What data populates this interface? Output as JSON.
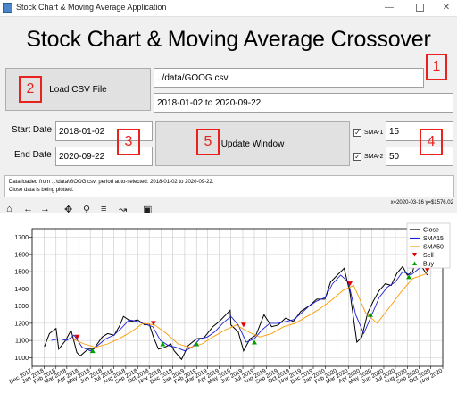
{
  "window": {
    "title": "Stock Chart & Moving Average Application"
  },
  "main_title": "Stock Chart & Moving Average Crossover",
  "controls": {
    "load_button": "Load CSV File",
    "file_path": "../data/GOOG.csv",
    "period": "2018-01-02 to 2020-09-22",
    "start_label": "Start Date",
    "start_value": "2018-01-02",
    "end_label": "End Date",
    "end_value": "2020-09-22",
    "update_button": "Update Window",
    "sma1_label": "SMA-1",
    "sma1_value": "15",
    "sma1_checked": "✓",
    "sma2_label": "SMA-2",
    "sma2_value": "50",
    "sma2_checked": "✓"
  },
  "badges": [
    "1",
    "2",
    "3",
    "4",
    "5"
  ],
  "status": {
    "line1": "Data loaded from ...\\data\\GOOG.csv; period auto-selected: 2018-01-02 to 2020-09-22.",
    "line2": "Close data is being plotted."
  },
  "toolbar": {
    "home_icon": "home-icon",
    "back_icon": "arrow-left-icon",
    "forward_icon": "arrow-right-icon",
    "pan_icon": "move-icon",
    "zoom_icon": "magnifier-icon",
    "configure_icon": "sliders-icon",
    "axes_icon": "line-chart-icon",
    "save_icon": "floppy-icon",
    "coords": "x=2020-03-16 y=$1576.02"
  },
  "colors": {
    "close": "#000000",
    "sma15": "#1f1fd6",
    "sma50": "#ff9900",
    "sell": "#e00000",
    "buy": "#00a000",
    "badge": "#e8231f"
  },
  "chart_data": {
    "type": "line",
    "title": "",
    "xlabel": "",
    "ylabel": "",
    "ylim": [
      950,
      1750
    ],
    "xlim": [
      "2017-12-01",
      "2020-11-01"
    ],
    "x_ticks": [
      "Dec 2017",
      "Jan 2018",
      "Feb 2018",
      "Mar 2018",
      "Apr 2018",
      "May 2018",
      "Jun 2018",
      "Jul 2018",
      "Aug 2018",
      "Sep 2018",
      "Oct 2018",
      "Nov 2018",
      "Dec 2018",
      "Jan 2019",
      "Feb 2019",
      "Mar 2019",
      "Apr 2019",
      "May 2019",
      "Jun 2019",
      "Jul 2019",
      "Aug 2019",
      "Sep 2019",
      "Oct 2019",
      "Nov 2019",
      "Dec 2019",
      "Jan 2020",
      "Feb 2020",
      "Mar 2020",
      "Apr 2020",
      "May 2020",
      "Jun 2020",
      "Jul 2020",
      "Aug 2020",
      "Sep 2020",
      "Oct 2020",
      "Nov 2020"
    ],
    "y_ticks": [
      1000,
      1100,
      1200,
      1300,
      1400,
      1500,
      1600,
      1700
    ],
    "grid": true,
    "legend": "top-right",
    "series": [
      {
        "name": "Close",
        "x": [
          "2018-01-02",
          "2018-01-15",
          "2018-02-01",
          "2018-02-08",
          "2018-02-26",
          "2018-03-12",
          "2018-03-27",
          "2018-04-05",
          "2018-04-25",
          "2018-05-10",
          "2018-06-01",
          "2018-06-15",
          "2018-07-02",
          "2018-07-16",
          "2018-07-26",
          "2018-08-15",
          "2018-09-01",
          "2018-09-20",
          "2018-10-01",
          "2018-10-12",
          "2018-10-25",
          "2018-11-10",
          "2018-11-26",
          "2018-12-05",
          "2018-12-24",
          "2019-01-10",
          "2019-02-01",
          "2019-02-20",
          "2019-03-15",
          "2019-04-01",
          "2019-04-29",
          "2019-05-01",
          "2019-05-20",
          "2019-06-03",
          "2019-06-20",
          "2019-07-05",
          "2019-07-26",
          "2019-08-15",
          "2019-09-01",
          "2019-09-20",
          "2019-10-10",
          "2019-10-30",
          "2019-11-20",
          "2019-12-10",
          "2019-12-31",
          "2020-01-15",
          "2020-02-01",
          "2020-02-19",
          "2020-03-05",
          "2020-03-23",
          "2020-04-05",
          "2020-04-20",
          "2020-05-05",
          "2020-05-20",
          "2020-06-05",
          "2020-06-20",
          "2020-07-05",
          "2020-07-20",
          "2020-08-01",
          "2020-08-15",
          "2020-09-01",
          "2020-09-10",
          "2020-09-22"
        ],
        "values": [
          1065,
          1140,
          1170,
          1050,
          1100,
          1160,
          1030,
          1010,
          1050,
          1050,
          1120,
          1140,
          1130,
          1185,
          1240,
          1210,
          1220,
          1190,
          1195,
          1120,
          1050,
          1060,
          1080,
          1040,
          990,
          1070,
          1110,
          1115,
          1180,
          1210,
          1275,
          1190,
          1150,
          1040,
          1110,
          1130,
          1250,
          1180,
          1190,
          1230,
          1210,
          1270,
          1300,
          1340,
          1340,
          1440,
          1480,
          1520,
          1380,
          1090,
          1120,
          1260,
          1330,
          1390,
          1430,
          1420,
          1490,
          1530,
          1480,
          1500,
          1650,
          1520,
          1480
        ]
      },
      {
        "name": "SMA15",
        "x": [
          "2018-01-20",
          "2018-02-10",
          "2018-03-01",
          "2018-03-20",
          "2018-04-10",
          "2018-05-01",
          "2018-05-20",
          "2018-06-10",
          "2018-07-01",
          "2018-07-20",
          "2018-08-10",
          "2018-09-01",
          "2018-09-20",
          "2018-10-10",
          "2018-10-30",
          "2018-11-20",
          "2018-12-10",
          "2019-01-01",
          "2019-01-20",
          "2019-02-10",
          "2019-03-01",
          "2019-03-20",
          "2019-04-10",
          "2019-05-01",
          "2019-05-20",
          "2019-06-10",
          "2019-07-01",
          "2019-07-20",
          "2019-08-10",
          "2019-09-01",
          "2019-09-20",
          "2019-10-10",
          "2019-11-01",
          "2019-11-20",
          "2019-12-10",
          "2020-01-01",
          "2020-01-20",
          "2020-02-10",
          "2020-03-01",
          "2020-03-20",
          "2020-04-10",
          "2020-05-01",
          "2020-05-20",
          "2020-06-10",
          "2020-07-01",
          "2020-07-20",
          "2020-08-10",
          "2020-09-01",
          "2020-09-22"
        ],
        "values": [
          1100,
          1110,
          1100,
          1130,
          1060,
          1040,
          1070,
          1110,
          1130,
          1170,
          1220,
          1210,
          1195,
          1180,
          1100,
          1070,
          1060,
          1040,
          1060,
          1110,
          1120,
          1150,
          1200,
          1240,
          1190,
          1090,
          1110,
          1160,
          1200,
          1200,
          1210,
          1220,
          1260,
          1300,
          1330,
          1350,
          1430,
          1480,
          1440,
          1250,
          1140,
          1250,
          1350,
          1410,
          1440,
          1500,
          1480,
          1520,
          1540
        ]
      },
      {
        "name": "SMA50",
        "x": [
          "2018-03-15",
          "2018-04-15",
          "2018-05-15",
          "2018-06-15",
          "2018-07-15",
          "2018-08-15",
          "2018-09-15",
          "2018-10-15",
          "2018-11-15",
          "2018-12-15",
          "2019-01-15",
          "2019-02-15",
          "2019-03-15",
          "2019-04-15",
          "2019-05-15",
          "2019-06-15",
          "2019-07-15",
          "2019-08-15",
          "2019-09-15",
          "2019-10-15",
          "2019-11-15",
          "2019-12-15",
          "2020-01-15",
          "2020-02-15",
          "2020-03-15",
          "2020-04-15",
          "2020-05-15",
          "2020-06-15",
          "2020-07-15",
          "2020-08-15",
          "2020-09-22"
        ],
        "values": [
          1110,
          1080,
          1060,
          1080,
          1110,
          1150,
          1200,
          1190,
          1140,
          1080,
          1060,
          1080,
          1120,
          1160,
          1190,
          1150,
          1120,
          1140,
          1180,
          1200,
          1240,
          1280,
          1330,
          1390,
          1420,
          1260,
          1200,
          1290,
          1380,
          1460,
          1490
        ]
      },
      {
        "name": "Sell",
        "x": [
          "2018-03-28",
          "2018-10-12",
          "2019-06-03",
          "2020-03-05",
          "2020-09-22"
        ],
        "values": [
          1120,
          1200,
          1190,
          1430,
          1510
        ]
      },
      {
        "name": "Buy",
        "x": [
          "2018-05-07",
          "2018-11-05",
          "2019-02-01",
          "2019-07-01",
          "2020-04-27",
          "2020-08-05"
        ],
        "values": [
          1040,
          1080,
          1080,
          1090,
          1250,
          1470
        ]
      }
    ]
  }
}
